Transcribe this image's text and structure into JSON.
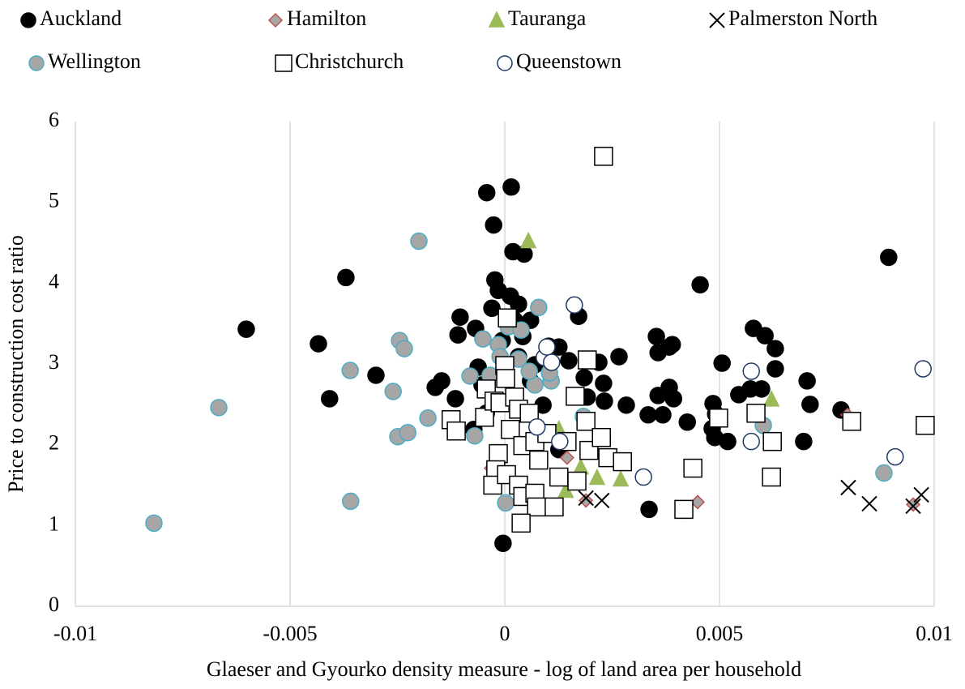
{
  "chart_data": {
    "type": "scatter",
    "xlabel": "Glaeser and Gyourko density measure - log of land area per household",
    "ylabel": "Price to construction cost ratio",
    "xlim": [
      -0.01,
      0.01
    ],
    "xticks": [
      -0.01,
      -0.005,
      0,
      0.005,
      0.01
    ],
    "ylim": [
      0,
      6
    ],
    "yticks": [
      0,
      1,
      2,
      3,
      4,
      5,
      6
    ],
    "grid": "x",
    "legend": "top",
    "series": [
      {
        "name": "Auckland",
        "marker": "circle",
        "color": "#000000",
        "edgecolor": "#000000",
        "x": [
          -0.00602,
          -0.00434,
          -0.0037,
          -0.00408,
          -0.003,
          -0.00042,
          0.00015,
          -0.00026,
          0.00019,
          0.00045,
          0.00894,
          0.00455,
          -0.00104,
          -0.00109,
          -0.00068,
          0.00172,
          -0.00023,
          -0.00015,
          -0.0003,
          0.00013,
          0.00032,
          0.0006,
          0.00102,
          0.00126,
          0.0007,
          -0.00147,
          -0.00162,
          -0.00115,
          -0.00062,
          -0.00053,
          0.00149,
          0.00185,
          0.0023,
          0.00232,
          0.00266,
          0.00283,
          0.00219,
          0.00192,
          0.00353,
          0.00357,
          0.00383,
          0.0039,
          0.00357,
          0.00383,
          0.00393,
          0.00368,
          0.00334,
          0.00425,
          0.00506,
          0.00485,
          0.00491,
          0.00483,
          0.00489,
          0.00519,
          0.00545,
          0.00579,
          0.00606,
          0.0063,
          0.0063,
          0.00572,
          0.00598,
          0.00704,
          0.00711,
          0.00696,
          0.00783,
          0.00336,
          -4e-05,
          0.00126,
          -6e-05,
          0.00032,
          0.0006,
          -0.00043,
          0.00089,
          -0.00072,
          0.00023,
          0.00042
        ],
        "y": [
          3.43,
          3.25,
          4.07,
          2.57,
          2.86,
          5.12,
          5.19,
          4.72,
          4.39,
          4.36,
          4.32,
          3.98,
          3.58,
          3.36,
          3.44,
          3.59,
          4.04,
          3.91,
          3.69,
          3.84,
          3.74,
          3.54,
          3.22,
          3.21,
          2.99,
          2.79,
          2.71,
          2.57,
          2.96,
          2.74,
          3.04,
          2.83,
          2.76,
          2.54,
          3.09,
          2.49,
          3.02,
          2.59,
          3.34,
          3.14,
          3.21,
          3.24,
          2.61,
          2.71,
          2.57,
          2.37,
          2.37,
          2.28,
          3.01,
          2.51,
          2.38,
          2.2,
          2.09,
          2.04,
          2.62,
          3.44,
          3.35,
          3.19,
          2.94,
          2.69,
          2.69,
          2.79,
          2.5,
          2.04,
          2.43,
          1.2,
          0.78,
          1.94,
          3.29,
          3.09,
          2.79,
          2.39,
          2.49,
          2.19,
          3.54,
          3.34
        ]
      },
      {
        "name": "Hamilton",
        "marker": "diamond",
        "color": "#a6a6a6",
        "edgecolor": "#c0504d",
        "x": [
          -0.00032,
          0.00189,
          0.00449,
          0.00951,
          0.00798,
          0.00145
        ],
        "y": [
          1.71,
          1.31,
          1.29,
          1.26,
          2.37,
          1.84
        ]
      },
      {
        "name": "Tauranga",
        "marker": "triangle",
        "color": "#9bbb59",
        "edgecolor": "#9bbb59",
        "x": [
          0.00055,
          0.00108,
          0.00142,
          0.00177,
          0.00215,
          0.0027,
          0.00621,
          0.00126
        ],
        "y": [
          4.52,
          2.91,
          1.43,
          1.72,
          1.59,
          1.57,
          2.56,
          2.19
        ]
      },
      {
        "name": "Palmerston North",
        "marker": "x",
        "color": "#000000",
        "edgecolor": "#000000",
        "x": [
          0.00189,
          0.00226,
          0.008,
          0.00849,
          0.00951,
          0.0097
        ],
        "y": [
          1.34,
          1.31,
          1.47,
          1.27,
          1.24,
          1.38
        ]
      },
      {
        "name": "Wellington",
        "marker": "circle",
        "color": "#a6a6a6",
        "edgecolor": "#4bacc6",
        "x": [
          -0.00817,
          -0.00666,
          -0.0036,
          -0.00359,
          -0.00245,
          -0.00234,
          -0.002,
          -0.0026,
          -0.00249,
          -0.00226,
          -0.00179,
          -0.00081,
          -0.0007,
          -0.00051,
          -0.00015,
          8e-05,
          0.00038,
          0.00079,
          -0.00034,
          0.00032,
          0.0007,
          0.00108,
          0.00057,
          2e-05,
          0.00183,
          0.00602,
          0.00883,
          -0.00011,
          0.00104
        ],
        "y": [
          1.03,
          2.46,
          2.92,
          1.3,
          3.29,
          3.19,
          4.52,
          2.66,
          2.1,
          2.15,
          2.33,
          2.85,
          2.11,
          3.31,
          3.24,
          3.46,
          3.42,
          3.7,
          2.86,
          3.06,
          2.74,
          2.79,
          2.91,
          1.28,
          2.35,
          2.24,
          1.65,
          3.09,
          2.89
        ]
      },
      {
        "name": "Christchurch",
        "marker": "square",
        "color": "#ffffff",
        "edgecolor": "#000000",
        "x": [
          0.0023,
          6e-05,
          0.00192,
          0,
          2e-05,
          0.00164,
          -0.00125,
          -0.00113,
          -0.00047,
          -0.00043,
          -0.00025,
          -0.00011,
          0.00023,
          0.00032,
          0.00013,
          0.00042,
          0.0007,
          0.00098,
          -0.00015,
          -0.00021,
          -0.00028,
          4e-05,
          0.00032,
          0.00042,
          0.0007,
          0.00074,
          0.00038,
          0.00126,
          0.00115,
          0.00168,
          0.00189,
          0.00196,
          0.00225,
          0.0024,
          0.00274,
          0.00057,
          0.00079,
          0.00438,
          0.00417,
          0.00498,
          0.00585,
          0.00623,
          0.00621,
          0.00808,
          0.00979,
          0.00145
        ],
        "y": [
          5.57,
          3.57,
          3.05,
          2.98,
          2.82,
          2.6,
          2.31,
          2.17,
          2.34,
          2.69,
          2.54,
          2.52,
          2.59,
          2.44,
          2.19,
          1.99,
          2.04,
          2.14,
          1.89,
          1.69,
          1.5,
          1.63,
          1.5,
          1.36,
          1.4,
          1.23,
          1.03,
          1.6,
          1.23,
          1.55,
          2.29,
          1.93,
          2.09,
          1.84,
          1.79,
          2.39,
          1.81,
          1.71,
          1.2,
          2.33,
          2.39,
          2.04,
          1.6,
          2.29,
          2.24,
          2.04
        ]
      },
      {
        "name": "Queenstown",
        "marker": "circle",
        "color": "#ffffff",
        "edgecolor": "#1f3864",
        "x": [
          0.00162,
          0.00092,
          0.00098,
          0.00109,
          0.00075,
          0.00128,
          0.00574,
          0.00574,
          0.00323,
          0.00909,
          0.00974
        ],
        "y": [
          3.73,
          3.08,
          3.21,
          3.02,
          2.22,
          2.04,
          2.91,
          2.04,
          1.6,
          1.85,
          2.94
        ]
      }
    ]
  }
}
